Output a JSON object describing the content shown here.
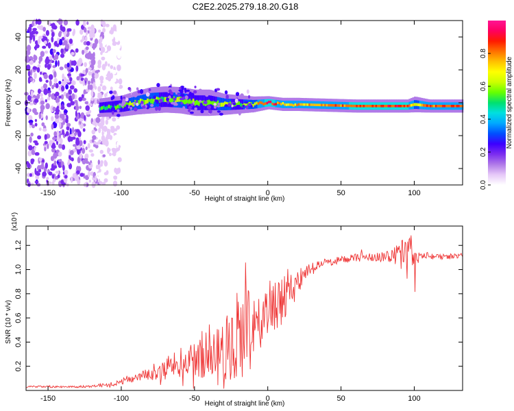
{
  "title": "C2E2.2025.279.18.20.G18",
  "chart_data": [
    {
      "type": "heatmap",
      "name": "spectrogram",
      "xlabel": "Height of straight line (km)",
      "ylabel": "Frequency (Hz)",
      "xlim": [
        -165,
        133
      ],
      "ylim": [
        -50,
        50
      ],
      "xticks": [
        -150,
        -100,
        -50,
        0,
        50,
        100
      ],
      "yticks": [
        -40,
        -20,
        0,
        20,
        40
      ],
      "colorbar": {
        "label": "Normalized spectral amplitude",
        "range": [
          0,
          1
        ],
        "ticks": [
          "0.0",
          "0.2",
          "0.4",
          "0.6",
          "0.8"
        ],
        "colormap": [
          "#ffffff",
          "#e6c8f8",
          "#b07ae8",
          "#7b2cf0",
          "#3c00ff",
          "#0050ff",
          "#00a8ff",
          "#00e0e0",
          "#00e070",
          "#66ff00",
          "#ccff00",
          "#ffff00",
          "#ffc000",
          "#ff7000",
          "#ff1a00",
          "#ff0060",
          "#ff1493"
        ]
      },
      "features": {
        "noise_region_x": [
          -165,
          -100
        ],
        "signal_trace": {
          "x": [
            -115,
            -100,
            -90,
            -80,
            -70,
            -60,
            -50,
            -40,
            -30,
            -20,
            -10,
            0,
            10,
            20,
            40,
            60,
            80,
            95,
            100,
            110,
            133
          ],
          "y": [
            -3,
            -2,
            0,
            1.5,
            2,
            1.5,
            0,
            0,
            -1,
            -1,
            -1,
            0,
            -1,
            -1,
            -1.5,
            -2,
            -2,
            -2,
            -1,
            -2,
            -2
          ],
          "peak": [
            0.55,
            0.6,
            0.65,
            0.65,
            0.6,
            0.65,
            0.6,
            0.6,
            0.65,
            0.6,
            0.7,
            1.0,
            0.8,
            0.8,
            0.85,
            0.92,
            0.92,
            0.92,
            0.72,
            0.9,
            0.88
          ],
          "width": [
            3.5,
            4.0,
            4.5,
            5.0,
            5.0,
            5.0,
            5.0,
            5.0,
            4.0,
            3.5,
            3.0,
            2.5,
            2.5,
            2.5,
            2.5,
            2.5,
            2.5,
            2.5,
            3.0,
            2.5,
            2.5
          ]
        }
      }
    },
    {
      "type": "line",
      "name": "snr",
      "xlabel": "Height of straight line (km)",
      "ylabel": "SNR (10 * v/v)",
      "y_multiplier": "(x10⁴)",
      "xlim": [
        -165,
        133
      ],
      "ylim": [
        0,
        13600
      ],
      "xticks": [
        -150,
        -100,
        -50,
        0,
        50,
        100
      ],
      "yticks": [
        0.2,
        0.4,
        0.6,
        0.8,
        1.0,
        1.2
      ],
      "color": "#ee3333",
      "series": [
        {
          "name": "SNR",
          "x": [
            -165,
            -130,
            -110,
            -100,
            -90,
            -80,
            -70,
            -60,
            -50,
            -40,
            -30,
            -20,
            -15,
            -10,
            -5,
            0,
            10,
            20,
            25,
            30,
            40,
            50,
            60,
            70,
            80,
            90,
            95,
            100,
            105,
            110,
            120,
            133
          ],
          "mean": [
            300,
            300,
            450,
            700,
            1200,
            1500,
            1800,
            2300,
            2600,
            3000,
            3500,
            4500,
            4800,
            4500,
            5800,
            6500,
            7500,
            8800,
            9600,
            10200,
            10600,
            10800,
            11000,
            11000,
            11100,
            11200,
            11000,
            11400,
            11200,
            11100,
            11100,
            11100
          ],
          "amp": [
            80,
            80,
            150,
            250,
            450,
            650,
            900,
            1200,
            1500,
            2000,
            2600,
            3800,
            4000,
            3200,
            2800,
            2600,
            2000,
            1200,
            700,
            400,
            350,
            300,
            350,
            350,
            450,
            900,
            2000,
            1800,
            600,
            300,
            250,
            250
          ]
        }
      ]
    }
  ]
}
